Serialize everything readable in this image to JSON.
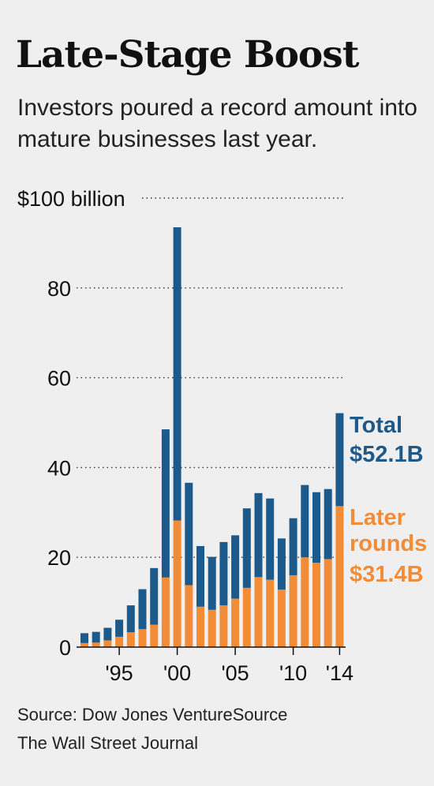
{
  "title": "Late-Stage Boost",
  "subtitle": "Investors poured a record amount into mature businesses last year.",
  "source": "Source: Dow Jones VentureSource",
  "credit": "The Wall Street Journal",
  "chart_data": {
    "type": "bar",
    "stacked": true,
    "title": "",
    "xlabel": "",
    "ylabel": "",
    "y_unit": "billion",
    "ylim": [
      0,
      100
    ],
    "grid": true,
    "x": [
      1992,
      1993,
      1994,
      1995,
      1996,
      1997,
      1998,
      1999,
      2000,
      2001,
      2002,
      2003,
      2004,
      2005,
      2006,
      2007,
      2008,
      2009,
      2010,
      2011,
      2012,
      2013,
      2014
    ],
    "x_tick_labels": [
      {
        "x": 1995,
        "label": "'95"
      },
      {
        "x": 2000,
        "label": "'00"
      },
      {
        "x": 2005,
        "label": "'05"
      },
      {
        "x": 2010,
        "label": "'10"
      },
      {
        "x": 2014,
        "label": "'14"
      }
    ],
    "y_ticks": [
      {
        "value": 0,
        "label": "0"
      },
      {
        "value": 20,
        "label": "20"
      },
      {
        "value": 40,
        "label": "40"
      },
      {
        "value": 60,
        "label": "60"
      },
      {
        "value": 80,
        "label": "80"
      },
      {
        "value": 100,
        "label": "$100 billion"
      }
    ],
    "total": [
      3.1,
      3.4,
      4.3,
      6.1,
      9.3,
      12.9,
      17.6,
      48.5,
      93.5,
      36.6,
      22.5,
      20.1,
      23.4,
      24.9,
      30.9,
      34.3,
      33.1,
      24.2,
      28.7,
      36.1,
      34.5,
      35.2,
      52.1
    ],
    "series": [
      {
        "name": "Later rounds",
        "color": "#f28c36",
        "values": [
          0.9,
          1.0,
          1.5,
          2.3,
          3.3,
          4.0,
          5.0,
          15.5,
          28.2,
          13.8,
          9.0,
          8.3,
          9.3,
          10.8,
          13.2,
          15.6,
          15.0,
          12.8,
          16.0,
          20.0,
          18.8,
          19.6,
          31.4
        ]
      },
      {
        "name": "",
        "color": "#1d5a8c",
        "values": [
          2.2,
          2.4,
          2.8,
          3.8,
          6.0,
          8.9,
          12.6,
          33.0,
          65.3,
          22.8,
          13.5,
          11.8,
          14.1,
          14.1,
          17.7,
          18.7,
          18.1,
          11.4,
          12.7,
          16.1,
          15.7,
          15.6,
          20.7
        ]
      }
    ],
    "annotations": [
      {
        "x": 2014,
        "lines": [
          "Total",
          "$52.1B"
        ],
        "color": "#1d5a8c"
      },
      {
        "x": 2014,
        "lines": [
          "Later",
          "rounds",
          "$31.4B"
        ],
        "color": "#f28c36"
      }
    ]
  }
}
